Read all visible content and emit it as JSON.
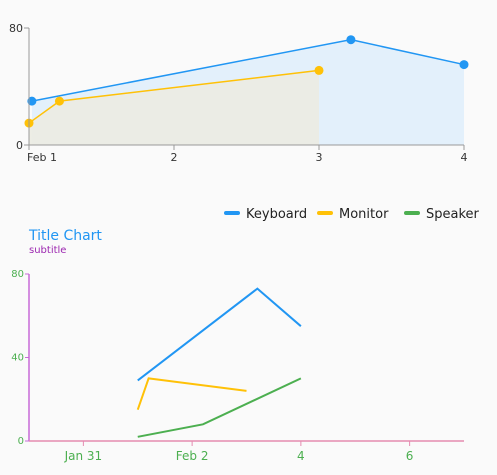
{
  "chart_data": [
    {
      "type": "area",
      "title": "",
      "xlabel": "",
      "ylabel": "",
      "xlim": [
        1,
        4
      ],
      "ylim": [
        0,
        80
      ],
      "x_ticks": [
        {
          "value": 1,
          "label": "Feb 1"
        },
        {
          "value": 2,
          "label": "2"
        },
        {
          "value": 3,
          "label": "3"
        },
        {
          "value": 4,
          "label": "4"
        }
      ],
      "y_ticks": [
        {
          "value": 0,
          "label": "0"
        },
        {
          "value": 80,
          "label": "80"
        }
      ],
      "grid": false,
      "series": [
        {
          "name": "Keyboard",
          "color": "#2196f3",
          "fill": "#e3f0fb",
          "points": [
            [
              1.02,
              30
            ],
            [
              3.22,
              72
            ],
            [
              4.0,
              55
            ]
          ]
        },
        {
          "name": "Monitor",
          "color": "#ffc107",
          "fill": "#ebebe2",
          "points": [
            [
              1.0,
              15
            ],
            [
              1.21,
              30
            ],
            [
              3.0,
              51
            ]
          ]
        }
      ]
    },
    {
      "type": "line",
      "title": "Title Chart",
      "subtitle": "subtitle",
      "xlabel": "",
      "ylabel": "",
      "xlim": [
        -2,
        6
      ],
      "ylim": [
        0,
        80
      ],
      "x_ticks": [
        {
          "value": -1,
          "label": "Jan 31"
        },
        {
          "value": 1,
          "label": "Feb 2"
        },
        {
          "value": 3,
          "label": "4"
        },
        {
          "value": 5,
          "label": "6"
        }
      ],
      "y_ticks": [
        {
          "value": 0,
          "label": "0"
        },
        {
          "value": 40,
          "label": "40"
        },
        {
          "value": 80,
          "label": "80"
        }
      ],
      "grid": false,
      "legend": {
        "position": "top-right"
      },
      "colors": {
        "title": "#2196f3",
        "subtitle": "#9c27b0",
        "tick_labels": "#4caf50",
        "y_axis": "#c86ad8",
        "x_axis": "#e58bb0"
      },
      "series": [
        {
          "name": "Keyboard",
          "color": "#2196f3",
          "points": [
            [
              0.0,
              29
            ],
            [
              2.2,
              73
            ],
            [
              3.0,
              55
            ]
          ]
        },
        {
          "name": "Monitor",
          "color": "#ffc107",
          "points": [
            [
              0.0,
              15
            ],
            [
              0.2,
              30
            ],
            [
              2.0,
              24
            ]
          ]
        },
        {
          "name": "Speaker",
          "color": "#4caf50",
          "points": [
            [
              0.0,
              2
            ],
            [
              1.2,
              8
            ],
            [
              3.0,
              30
            ]
          ]
        }
      ]
    }
  ]
}
